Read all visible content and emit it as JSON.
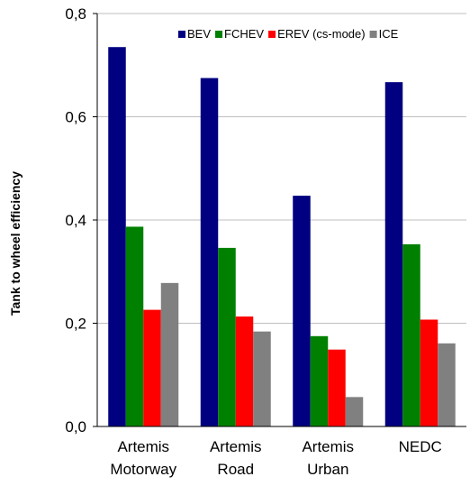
{
  "chart_data": {
    "type": "bar",
    "title": "",
    "xlabel": "",
    "ylabel": "Tank to wheel efficiency",
    "ylim": [
      0,
      0.8
    ],
    "yticks": [
      "0,0",
      "0,2",
      "0,4",
      "0,6",
      "0,8"
    ],
    "ytick_values": [
      0,
      0.2,
      0.4,
      0.6,
      0.8
    ],
    "grid": true,
    "legend_position": "top-right",
    "categories": [
      [
        "Artemis",
        "Motorway"
      ],
      [
        "Artemis",
        "Road"
      ],
      [
        "Artemis",
        "Urban"
      ],
      [
        "NEDC"
      ]
    ],
    "series": [
      {
        "name": "BEV",
        "color": "#000080",
        "values": [
          0.735,
          0.675,
          0.447,
          0.667
        ]
      },
      {
        "name": "FCHEV",
        "color": "#008000",
        "values": [
          0.387,
          0.346,
          0.175,
          0.353
        ]
      },
      {
        "name": "EREV (cs-mode)",
        "color": "#ff0000",
        "values": [
          0.226,
          0.213,
          0.149,
          0.207
        ]
      },
      {
        "name": "ICE",
        "color": "#808080",
        "values": [
          0.278,
          0.184,
          0.057,
          0.161
        ]
      }
    ]
  }
}
